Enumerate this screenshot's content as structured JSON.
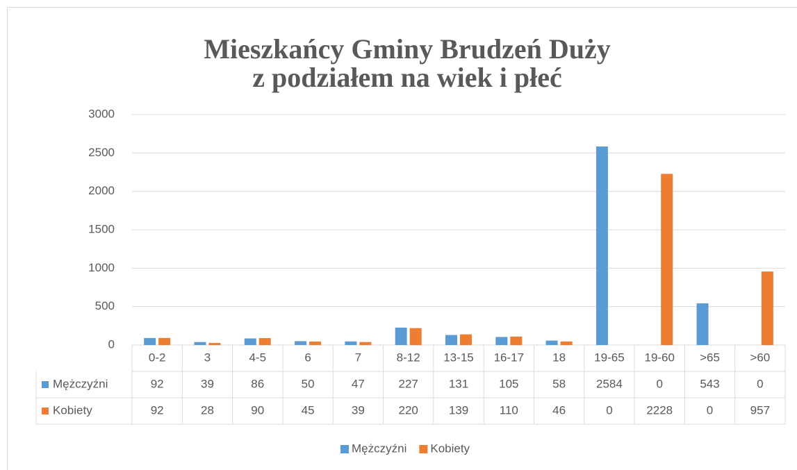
{
  "chart_data": {
    "type": "bar",
    "title": [
      "Mieszkańcy Gminy Brudzeń Duży",
      "z podziałem na wiek i płeć"
    ],
    "categories": [
      "0-2",
      "3",
      "4-5",
      "6",
      "7",
      "8-12",
      "13-15",
      "16-17",
      "18",
      "19-65",
      "19-60",
      ">65",
      ">60"
    ],
    "series": [
      {
        "name": "Mężczyźni",
        "color": "#5b9bd5",
        "values": [
          92,
          39,
          86,
          50,
          47,
          227,
          131,
          105,
          58,
          2584,
          0,
          543,
          0
        ]
      },
      {
        "name": "Kobiety",
        "color": "#ed7d31",
        "values": [
          92,
          28,
          90,
          45,
          39,
          220,
          139,
          110,
          46,
          0,
          2228,
          0,
          957
        ]
      }
    ],
    "ylim": [
      0,
      3000
    ],
    "yticks": [
      0,
      500,
      1000,
      1500,
      2000,
      2500,
      3000
    ],
    "grid": true,
    "legend": "bottom"
  }
}
